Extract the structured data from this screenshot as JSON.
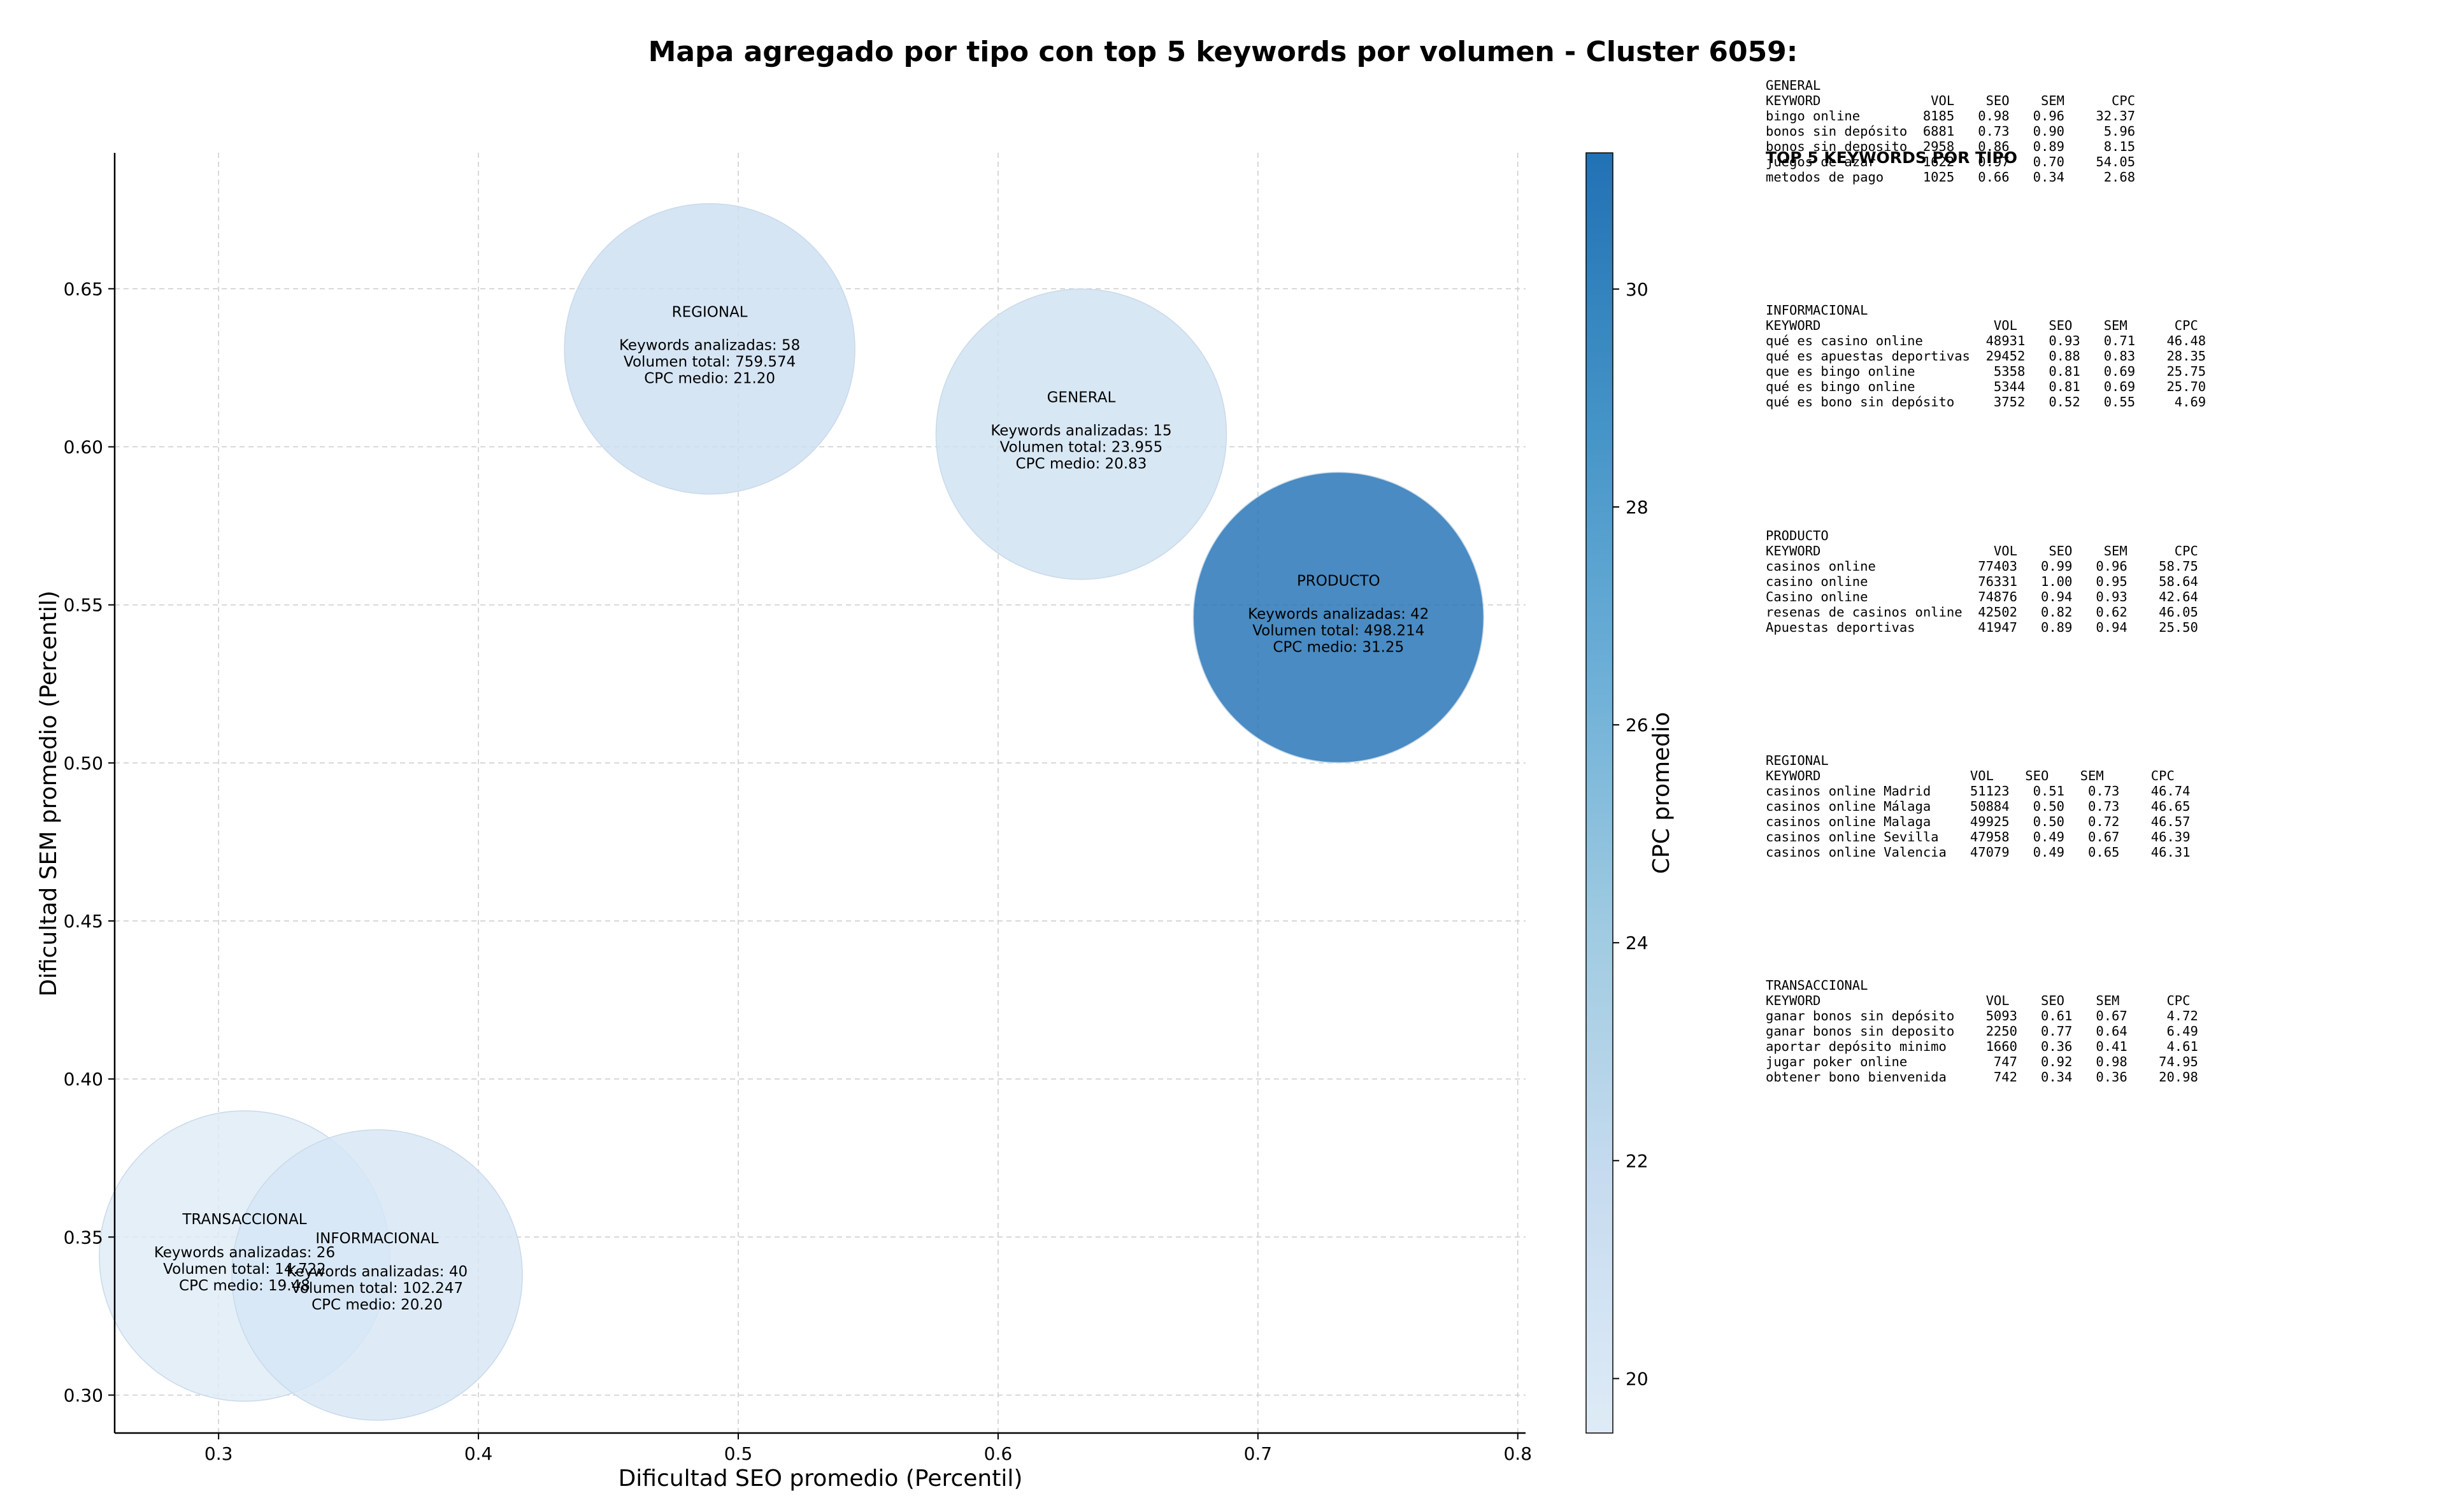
{
  "chart_data": {
    "type": "scatter",
    "title": "Mapa agregado por tipo con top 5 keywords por volumen - Cluster 6059:",
    "xlabel": "Dificultad SEO promedio (Percentil)",
    "ylabel": "Dificultad SEM promedio (Percentil)",
    "xlim": [
      0.26,
      0.803
    ],
    "ylim": [
      0.288,
      0.693
    ],
    "xticks": [
      0.3,
      0.4,
      0.5,
      0.6,
      0.7,
      0.8
    ],
    "yticks": [
      0.3,
      0.35,
      0.4,
      0.45,
      0.5,
      0.55,
      0.6,
      0.65
    ],
    "grid": true,
    "colorbar": {
      "label": "CPC promedio",
      "range": [
        19.5,
        31.25
      ],
      "ticks": [
        20,
        22,
        24,
        26,
        28,
        30
      ],
      "colormap": [
        "#deebf7",
        "#c6dbef",
        "#9ecae1",
        "#6baed6",
        "#4292c6",
        "#2171b5"
      ]
    },
    "series": [
      {
        "type_name": "REGIONAL",
        "x": 0.489,
        "y": 0.631,
        "keywords_label": "Keywords analizadas: 58",
        "volume_label": "Volumen total: 759.574",
        "cpc_label": "CPC medio: 21.20",
        "cpc": 21.2,
        "volume": 759574
      },
      {
        "type_name": "GENERAL",
        "x": 0.632,
        "y": 0.604,
        "keywords_label": "Keywords analizadas: 15",
        "volume_label": "Volumen total: 23.955",
        "cpc_label": "CPC medio: 20.83",
        "cpc": 20.83,
        "volume": 23955
      },
      {
        "type_name": "PRODUCTO",
        "x": 0.731,
        "y": 0.546,
        "keywords_label": "Keywords analizadas: 42",
        "volume_label": "Volumen total: 498.214",
        "cpc_label": "CPC medio: 31.25",
        "cpc": 31.25,
        "volume": 498214
      },
      {
        "type_name": "TRANSACCIONAL",
        "x": 0.31,
        "y": 0.344,
        "keywords_label": "Keywords analizadas: 26",
        "volume_label": "Volumen total: 14.722",
        "cpc_label": "CPC medio: 19.48",
        "cpc": 19.48,
        "volume": 14722
      },
      {
        "type_name": "INFORMACIONAL",
        "x": 0.361,
        "y": 0.338,
        "keywords_label": "Keywords analizadas: 40",
        "volume_label": "Volumen total: 102.247",
        "cpc_label": "CPC medio: 20.20",
        "cpc": 20.2,
        "volume": 102247
      }
    ]
  },
  "side_table": {
    "heading": "TOP 5 KEYWORDS POR TIPO",
    "blocks": [
      {
        "name": "GENERAL",
        "header": "KEYWORD              VOL    SEO    SEM      CPC",
        "rows": [
          "bingo online        8185   0.98   0.96    32.37",
          "bonos sin depósito  6881   0.73   0.90     5.96",
          "bonos sin deposito  2958   0.86   0.89     8.15",
          "juegos de azar      1622   0.97   0.70    54.05",
          "metodos de pago     1025   0.66   0.34     2.68"
        ]
      },
      {
        "name": "INFORMACIONAL",
        "header": "KEYWORD                      VOL    SEO    SEM      CPC",
        "rows": [
          "qué es casino online        48931   0.93   0.71    46.48",
          "qué es apuestas deportivas  29452   0.88   0.83    28.35",
          "que es bingo online          5358   0.81   0.69    25.75",
          "qué es bingo online          5344   0.81   0.69    25.70",
          "qué es bono sin depósito     3752   0.52   0.55     4.69"
        ]
      },
      {
        "name": "PRODUCTO",
        "header": "KEYWORD                      VOL    SEO    SEM      CPC",
        "rows": [
          "casinos online             77403   0.99   0.96    58.75",
          "casino online              76331   1.00   0.95    58.64",
          "Casino online              74876   0.94   0.93    42.64",
          "resenas de casinos online  42502   0.82   0.62    46.05",
          "Apuestas deportivas        41947   0.89   0.94    25.50"
        ]
      },
      {
        "name": "REGIONAL",
        "header": "KEYWORD                   VOL    SEO    SEM      CPC",
        "rows": [
          "casinos online Madrid     51123   0.51   0.73    46.74",
          "casinos online Málaga     50884   0.50   0.73    46.65",
          "casinos online Malaga     49925   0.50   0.72    46.57",
          "casinos online Sevilla    47958   0.49   0.67    46.39",
          "casinos online Valencia   47079   0.49   0.65    46.31"
        ]
      },
      {
        "name": "TRANSACCIONAL",
        "header": "KEYWORD                     VOL    SEO    SEM      CPC",
        "rows": [
          "ganar bonos sin depósito    5093   0.61   0.67     4.72",
          "ganar bonos sin deposito    2250   0.77   0.64     6.49",
          "aportar depósito minimo     1660   0.36   0.41     4.61",
          "jugar poker online           747   0.92   0.98    74.95",
          "obtener bono bienvenida      742   0.34   0.36    20.98"
        ]
      }
    ]
  }
}
